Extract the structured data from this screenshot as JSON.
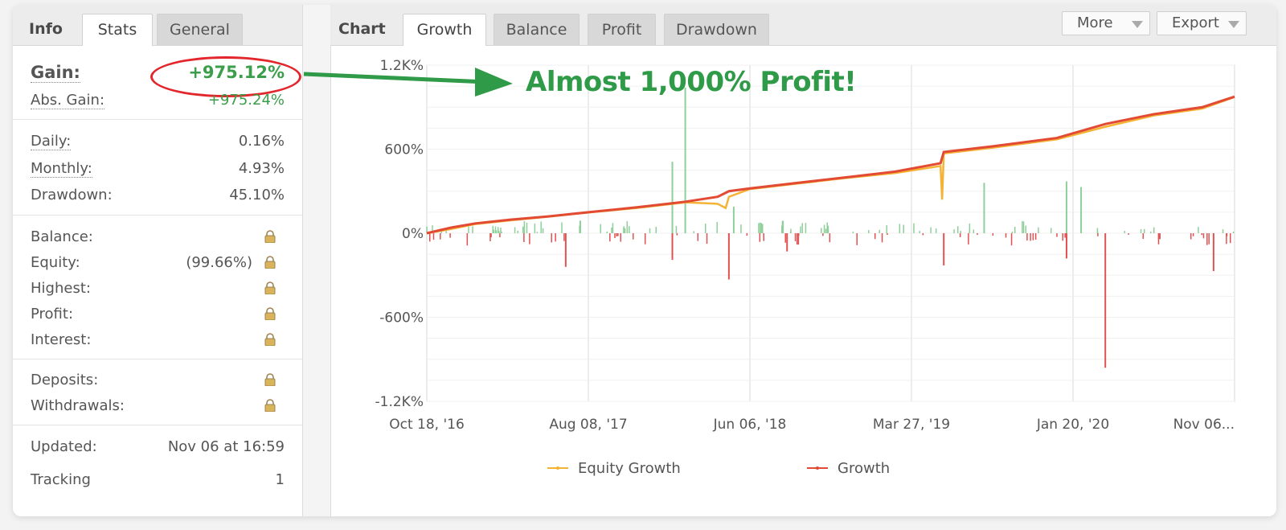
{
  "left_panel": {
    "tabs": {
      "title": "Info",
      "stats": "Stats",
      "general": "General"
    },
    "gain": {
      "label": "Gain:",
      "value": "+975.12%"
    },
    "abs_gain": {
      "label": "Abs. Gain:",
      "value": "+975.24%"
    },
    "daily": {
      "label": "Daily:",
      "value": "0.16%"
    },
    "monthly": {
      "label": "Monthly:",
      "value": "4.93%"
    },
    "drawdown": {
      "label": "Drawdown:",
      "value": "45.10%"
    },
    "balance": {
      "label": "Balance:"
    },
    "equity": {
      "label": "Equity:",
      "value": "(99.66%)"
    },
    "highest": {
      "label": "Highest:"
    },
    "profit": {
      "label": "Profit:"
    },
    "interest": {
      "label": "Interest:"
    },
    "deposits": {
      "label": "Deposits:"
    },
    "withdrawals": {
      "label": "Withdrawals:"
    },
    "updated": {
      "label": "Updated:",
      "value": "Nov 06 at 16:59"
    },
    "tracking": {
      "label": "Tracking",
      "value": "1"
    }
  },
  "right_panel": {
    "tabs": {
      "title": "Chart",
      "growth": "Growth",
      "balance": "Balance",
      "profit": "Profit",
      "drawdown": "Drawdown"
    },
    "more_label": "More",
    "export_label": "Export"
  },
  "annotation": "Almost 1,000% Profit!",
  "colors": {
    "growth": "#e24a33",
    "equity": "#f5b335",
    "gain_green": "#3a9e4a",
    "bar_green": "#8fd09a",
    "bar_red": "#e15151"
  },
  "icons": {
    "lock": "padlock-icon"
  },
  "chart_data": {
    "type": "line",
    "title": "",
    "xlabel": "",
    "ylabel": "",
    "ylim": [
      -1200,
      1200
    ],
    "y_ticks": [
      "1.2K%",
      "600%",
      "0%",
      "-600%",
      "-1.2K%"
    ],
    "y_tick_values": [
      1200,
      600,
      0,
      -600,
      -1200
    ],
    "x_ticks": [
      "Oct 18, '16",
      "Aug 08, '17",
      "Jun 06, '18",
      "Mar 27, '19",
      "Jan 20, '20",
      "Nov 06..."
    ],
    "x_tick_values": [
      0,
      1,
      2,
      3,
      4,
      5
    ],
    "xlim": [
      0,
      5.0
    ],
    "legend": [
      "Equity Growth",
      "Growth"
    ],
    "legend_position": "bottom",
    "series": [
      {
        "name": "Growth",
        "x": [
          0,
          0.15,
          0.3,
          0.5,
          0.75,
          1.0,
          1.3,
          1.6,
          1.8,
          1.87,
          2.0,
          2.3,
          2.6,
          2.9,
          3.18,
          3.2,
          3.5,
          3.9,
          4.2,
          4.5,
          4.8,
          5.0
        ],
        "y": [
          0,
          40,
          70,
          95,
          120,
          150,
          185,
          225,
          260,
          300,
          320,
          360,
          400,
          440,
          500,
          580,
          620,
          680,
          780,
          850,
          900,
          975
        ]
      },
      {
        "name": "Equity Growth",
        "x": [
          0,
          0.15,
          0.3,
          0.5,
          0.75,
          1.0,
          1.3,
          1.6,
          1.8,
          1.85,
          1.87,
          2.0,
          2.3,
          2.6,
          2.9,
          3.18,
          3.19,
          3.2,
          3.5,
          3.9,
          4.2,
          4.5,
          4.8,
          5.0
        ],
        "y": [
          0,
          30,
          65,
          90,
          118,
          148,
          180,
          220,
          210,
          180,
          260,
          315,
          355,
          395,
          430,
          480,
          240,
          570,
          610,
          670,
          760,
          840,
          890,
          972
        ]
      }
    ]
  }
}
